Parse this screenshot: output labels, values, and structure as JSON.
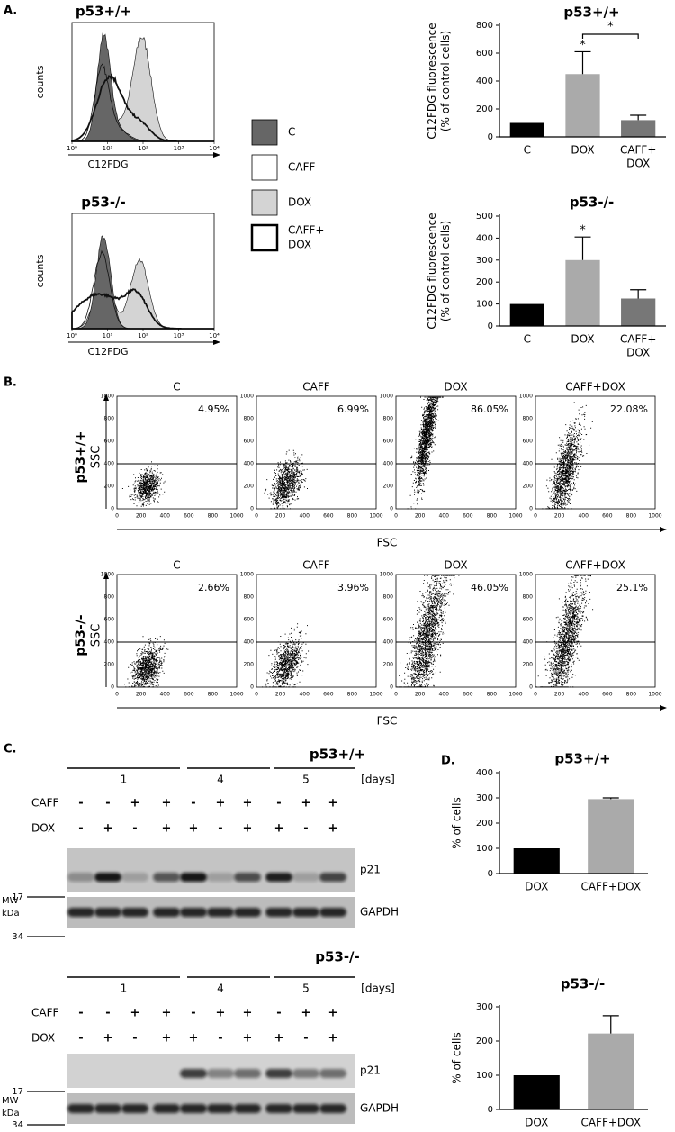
{
  "panel_labels": {
    "a": "A.",
    "b": "B.",
    "c": "C.",
    "d": "D."
  },
  "histograms": {
    "ylabel": "counts",
    "xlabel": "C12FDG",
    "xlim": [
      0,
      4
    ],
    "xticks": [
      {
        "value": 0,
        "label": "10⁰"
      },
      {
        "value": 1,
        "label": "10¹"
      },
      {
        "value": 2,
        "label": "10²"
      },
      {
        "value": 3,
        "label": "10³"
      },
      {
        "value": 4,
        "label": "10⁴"
      }
    ],
    "panels": [
      {
        "title": "p53+/+"
      },
      {
        "title": "p53-/-"
      }
    ]
  },
  "legend": [
    {
      "label": [
        "C"
      ],
      "color": "#666666"
    },
    {
      "label": [
        "CAFF"
      ],
      "color": "#ffffff"
    },
    {
      "label": [
        "DOX"
      ],
      "color": "#d4d4d4"
    },
    {
      "label": [
        "CAFF+",
        "DOX"
      ],
      "color": "#ffffff"
    }
  ],
  "flow": {
    "xlabel": "FSC",
    "ylabel": "SSC",
    "lim": [
      0,
      1000
    ],
    "ticks": [
      0,
      200,
      400,
      600,
      800,
      1000
    ],
    "gate_ssc": 400,
    "conditions": [
      "C",
      "CAFF",
      "DOX",
      "CAFF+DOX"
    ],
    "rows": [
      {
        "label": "p53+/+",
        "conditions": [
          "C",
          "CAFF",
          "DOX",
          "CAFF+DOX"
        ],
        "percentages": [
          "4.95%",
          "6.99%",
          "86.05%",
          "22.08%"
        ]
      },
      {
        "label": "p53-/-",
        "conditions": [
          "C",
          "CAFF",
          "DOX",
          "CAFF+DOX"
        ],
        "percentages": [
          "2.66%",
          "3.96%",
          "46.05%",
          "25.1%"
        ]
      }
    ]
  },
  "blots": [
    {
      "title": "p53+/+",
      "days": [
        "1",
        "4",
        "5"
      ],
      "days_label": "[days]",
      "row_labels": [
        "CAFF",
        "DOX"
      ],
      "caff": [
        "-",
        "-",
        "+",
        "+",
        "-",
        "+",
        "+",
        "-",
        "+",
        "+"
      ],
      "dox": [
        "-",
        "+",
        "-",
        "+",
        "+",
        "-",
        "+",
        "+",
        "-",
        "+"
      ],
      "bands": [
        "p21",
        "GAPDH"
      ],
      "mw_label": [
        "MW",
        "kDa"
      ],
      "markers": [
        "17",
        "34"
      ]
    },
    {
      "title": "p53-/-",
      "days": [
        "1",
        "4",
        "5"
      ],
      "days_label": "[days]",
      "row_labels": [
        "CAFF",
        "DOX"
      ],
      "caff": [
        "-",
        "-",
        "+",
        "+",
        "-",
        "+",
        "+",
        "-",
        "+",
        "+"
      ],
      "dox": [
        "-",
        "+",
        "-",
        "+",
        "+",
        "-",
        "+",
        "+",
        "-",
        "+"
      ],
      "bands": [
        "p21",
        "GAPDH"
      ],
      "mw_label": [
        "MW",
        "kDa"
      ],
      "markers": [
        "17",
        "34"
      ]
    }
  ],
  "chart_data": [
    {
      "type": "bar",
      "title": "p53+/+",
      "ylabel": [
        "C12FDG fluorescence",
        "(% of control cells)"
      ],
      "categories": [
        [
          "C"
        ],
        [
          "DOX"
        ],
        [
          "CAFF+",
          "DOX"
        ]
      ],
      "values": [
        100,
        450,
        120
      ],
      "errors": [
        null,
        160,
        35
      ],
      "colors": [
        "#000000",
        "#aaaaaa",
        "#777777"
      ],
      "ylim": [
        0,
        800
      ],
      "yticks": [
        0,
        200,
        400,
        600,
        800
      ],
      "annotations": [
        {
          "text": "*",
          "category": 1
        },
        {
          "text": "*",
          "from": 1,
          "to": 2
        }
      ]
    },
    {
      "type": "bar",
      "title": "p53-/-",
      "ylabel": [
        "C12FDG fluorescence",
        "(% of control cells)"
      ],
      "categories": [
        [
          "C"
        ],
        [
          "DOX"
        ],
        [
          "CAFF+",
          "DOX"
        ]
      ],
      "values": [
        100,
        300,
        125
      ],
      "errors": [
        null,
        105,
        40
      ],
      "colors": [
        "#000000",
        "#aaaaaa",
        "#777777"
      ],
      "ylim": [
        0,
        500
      ],
      "yticks": [
        0,
        100,
        200,
        300,
        400,
        500
      ],
      "annotations": [
        {
          "text": "*",
          "category": 1
        }
      ]
    },
    {
      "type": "bar",
      "title": "p53+/+",
      "ylabel": [
        "% of cells"
      ],
      "categories": [
        [
          "DOX"
        ],
        [
          "CAFF+DOX"
        ]
      ],
      "values": [
        100,
        295
      ],
      "errors": [
        null,
        5
      ],
      "colors": [
        "#000000",
        "#aaaaaa"
      ],
      "ylim": [
        0,
        400
      ],
      "yticks": [
        0,
        100,
        200,
        300,
        400
      ],
      "annotations": []
    },
    {
      "type": "bar",
      "title": "p53-/-",
      "ylabel": [
        "% of cells"
      ],
      "categories": [
        [
          "DOX"
        ],
        [
          "CAFF+DOX"
        ]
      ],
      "values": [
        100,
        222
      ],
      "errors": [
        null,
        52
      ],
      "colors": [
        "#000000",
        "#aaaaaa"
      ],
      "ylim": [
        0,
        300
      ],
      "yticks": [
        0,
        100,
        200,
        300
      ],
      "annotations": []
    }
  ]
}
